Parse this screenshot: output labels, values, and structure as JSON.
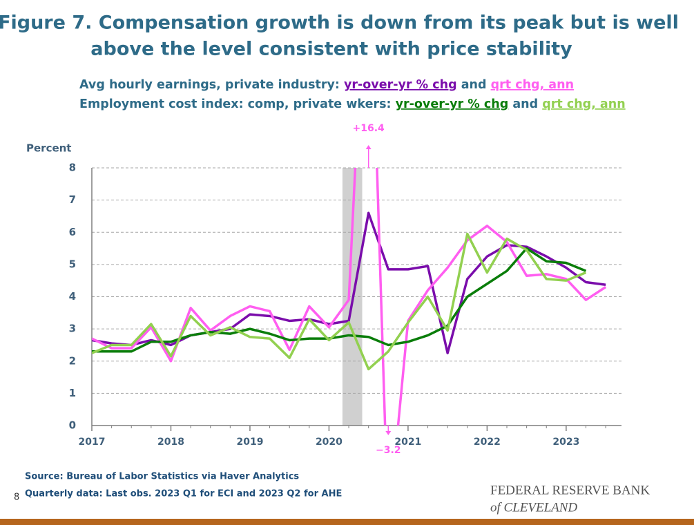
{
  "chart_data": {
    "type": "line",
    "title": [
      "Figure 7. Compensation growth is down from its peak but is well",
      "above the level consistent with price stability"
    ],
    "legend_groups": [
      {
        "label": "Avg hourly earnings, private industry:",
        "joiner": "and",
        "series": [
          0,
          1
        ]
      },
      {
        "label": "Employment cost index: comp, private wkers:",
        "joiner": "and",
        "series": [
          2,
          3
        ]
      }
    ],
    "y_label": "Percent",
    "x": [
      2017,
      2017.25,
      2017.5,
      2017.75,
      2018,
      2018.25,
      2018.5,
      2018.75,
      2019,
      2019.25,
      2019.5,
      2019.75,
      2020,
      2020.25,
      2020.5,
      2020.75,
      2021,
      2021.25,
      2021.5,
      2021.75,
      2022,
      2022.25,
      2022.5,
      2022.75,
      2023,
      2023.25,
      2023.5
    ],
    "series": [
      {
        "name": "yr-over-yr % chg",
        "color": "#7a0dab",
        "values": [
          2.65,
          2.55,
          2.5,
          2.65,
          2.5,
          2.8,
          2.9,
          3.0,
          3.45,
          3.4,
          3.25,
          3.3,
          3.15,
          3.25,
          6.6,
          4.85,
          4.85,
          4.95,
          2.25,
          4.55,
          5.25,
          5.6,
          5.55,
          5.25,
          4.9,
          4.45,
          4.37
        ]
      },
      {
        "name": "qrt chg, ann",
        "color": "#ff5ef0",
        "values": [
          2.7,
          2.4,
          2.4,
          3.05,
          2.0,
          3.65,
          2.95,
          3.4,
          3.7,
          3.55,
          2.35,
          3.7,
          3.05,
          3.9,
          16.4,
          -3.2,
          3.25,
          4.2,
          4.9,
          5.75,
          6.2,
          5.7,
          4.65,
          4.7,
          4.55,
          3.9,
          4.3
        ],
        "value_labels": [
          null,
          null,
          null,
          null,
          null,
          null,
          null,
          null,
          null,
          null,
          null,
          null,
          null,
          null,
          "+16.4",
          "−3.2",
          null,
          null,
          null,
          null,
          null,
          null,
          null,
          null,
          null,
          null,
          null
        ]
      },
      {
        "name": "yr-over-yr % chg",
        "color": "#0a7d0a",
        "values": [
          2.3,
          2.3,
          2.3,
          2.6,
          2.6,
          2.8,
          2.9,
          2.85,
          3.0,
          2.85,
          2.65,
          2.7,
          2.7,
          2.8,
          2.75,
          2.5,
          2.6,
          2.8,
          3.1,
          4.0,
          4.4,
          4.8,
          5.5,
          5.1,
          5.05,
          4.8,
          null
        ]
      },
      {
        "name": "qrt chg, ann",
        "color": "#92d050",
        "values": [
          2.25,
          2.5,
          2.5,
          3.15,
          2.15,
          3.4,
          2.8,
          3.05,
          2.75,
          2.7,
          2.1,
          3.3,
          2.65,
          3.2,
          1.75,
          2.3,
          3.2,
          4.0,
          2.95,
          5.95,
          4.75,
          5.8,
          5.45,
          4.55,
          4.5,
          4.75,
          null
        ]
      }
    ],
    "shading": {
      "x": [
        2020.17,
        2020.42
      ],
      "color": "#d0d0d0"
    },
    "xlim": [
      2017,
      2023.7
    ],
    "xticks": [
      2017,
      2018,
      2019,
      2020,
      2021,
      2022,
      2023
    ],
    "ylim": [
      0,
      8
    ],
    "yticks": [
      0,
      1,
      2,
      3,
      4,
      5,
      6,
      7,
      8
    ],
    "grid": true,
    "notes": [
      "Source: Bureau of Labor Statistics via Haver Analytics",
      "Quarterly data: Last obs. 2023 Q1 for ECI and 2023 Q2 for AHE"
    ],
    "page_number": "8",
    "logo": [
      "FEDERAL RESERVE BANK",
      "of CLEVELAND"
    ]
  }
}
